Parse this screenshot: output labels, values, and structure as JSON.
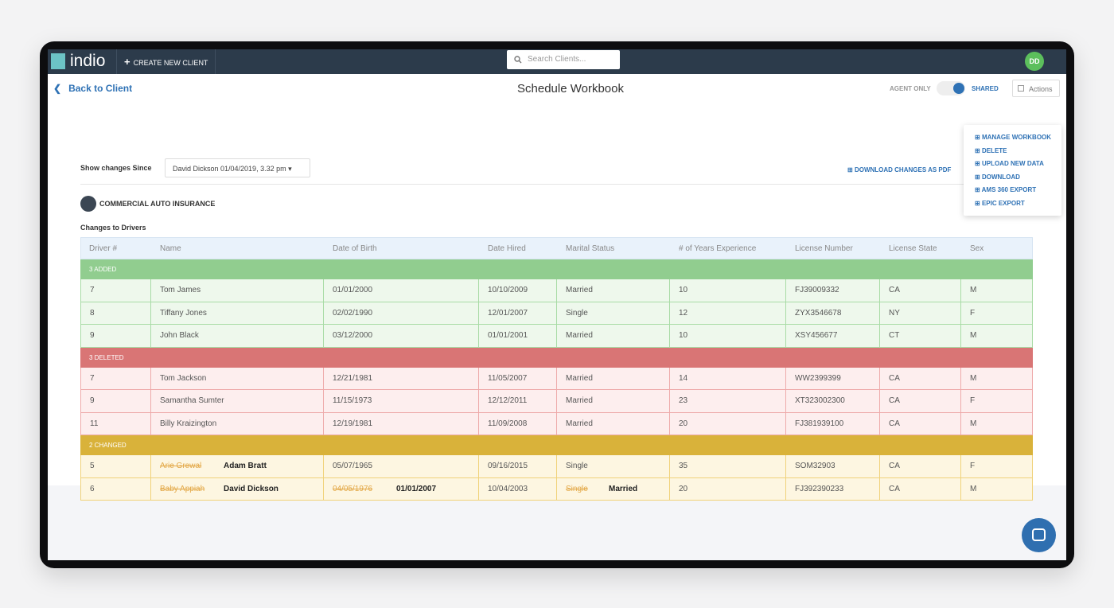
{
  "nav": {
    "logo": "indio",
    "create": "CREATE NEW CLIENT",
    "search": "Search Clients...",
    "avatar": "DD"
  },
  "header": {
    "back": "Back to Client",
    "title": "Schedule Workbook",
    "agent_only": "AGENT ONLY",
    "shared": "SHARED",
    "actions": "Actions"
  },
  "actions_menu": [
    "MANAGE WORKBOOK",
    "DELETE",
    "UPLOAD NEW DATA",
    "DOWNLOAD",
    "AMS 360 EXPORT",
    "EPIC EXPORT"
  ],
  "filter": {
    "label": "Show changes Since",
    "value": "David Dickson 01/04/2019, 3.32 pm",
    "download": "DOWNLOAD CHANGES AS PDF"
  },
  "section": "COMMERCIAL AUTO INSURANCE",
  "table": {
    "title": "Changes to Drivers",
    "columns": [
      "Driver #",
      "Name",
      "Date of Birth",
      "Date Hired",
      "Marital Status",
      "# of Years Experience",
      "License Number",
      "License State",
      "Sex"
    ],
    "groups": [
      {
        "label": "3 ADDED",
        "rows": [
          [
            "7",
            "Tom James",
            "01/01/2000",
            "10/10/2009",
            "Married",
            "10",
            "FJ39009332",
            "CA",
            "M"
          ],
          [
            "8",
            "Tiffany Jones",
            "02/02/1990",
            "12/01/2007",
            "Single",
            "12",
            "ZYX3546678",
            "NY",
            "F"
          ],
          [
            "9",
            "John Black",
            "03/12/2000",
            "01/01/2001",
            "Married",
            "10",
            "XSY456677",
            "CT",
            "M"
          ]
        ]
      },
      {
        "label": "3 DELETED",
        "rows": [
          [
            "7",
            "Tom Jackson",
            "12/21/1981",
            "11/05/2007",
            "Married",
            "14",
            "WW2399399",
            "CA",
            "M"
          ],
          [
            "9",
            "Samantha Sumter",
            "11/15/1973",
            "12/12/2011",
            "Married",
            "23",
            "XT323002300",
            "CA",
            "F"
          ],
          [
            "11",
            "Billy Kraizington",
            "12/19/1981",
            "11/09/2008",
            "Married",
            "20",
            "FJ381939100",
            "CA",
            "M"
          ]
        ]
      },
      {
        "label": "2 CHANGED",
        "rows": [
          [
            "5",
            {
              "old": "Arie Grewal",
              "new": "Adam Bratt"
            },
            "05/07/1965",
            "09/16/2015",
            "Single",
            "35",
            "SOM32903",
            "CA",
            "F"
          ],
          [
            "6",
            {
              "old": "Baby Appiah",
              "new": "David Dickson"
            },
            {
              "old": "04/05/1976",
              "new": "01/01/2007"
            },
            "10/04/2003",
            {
              "old": "Single",
              "new": "Married"
            },
            "20",
            "FJ392390233",
            "CA",
            "M"
          ]
        ]
      }
    ]
  }
}
